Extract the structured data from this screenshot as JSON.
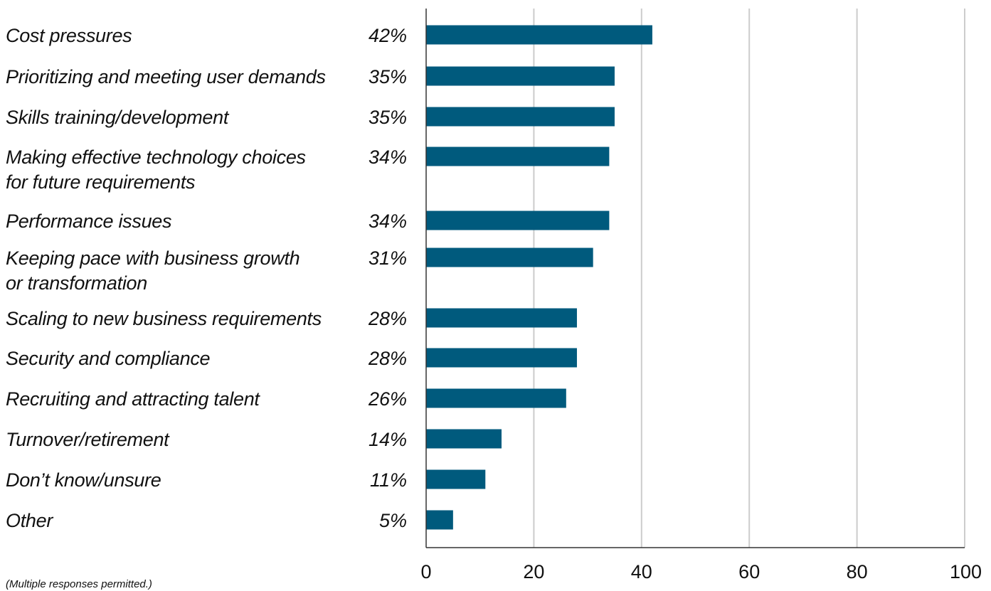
{
  "chart_data": {
    "type": "bar",
    "orientation": "horizontal",
    "categories": [
      [
        "Cost pressures"
      ],
      [
        "Prioritizing and meeting user demands"
      ],
      [
        "Skills training/development"
      ],
      [
        "Making effective technology choices",
        "for future requirements"
      ],
      [
        "Performance issues"
      ],
      [
        "Keeping pace with business growth",
        "or transformation"
      ],
      [
        "Scaling to new business requirements"
      ],
      [
        "Security and compliance"
      ],
      [
        "Recruiting and attracting talent"
      ],
      [
        "Turnover/retirement"
      ],
      [
        "Don’t know/unsure"
      ],
      [
        "Other"
      ]
    ],
    "values": [
      42,
      35,
      35,
      34,
      34,
      31,
      28,
      28,
      26,
      14,
      11,
      5
    ],
    "value_labels": [
      "42%",
      "35%",
      "35%",
      "34%",
      "34%",
      "31%",
      "28%",
      "28%",
      "26%",
      "14%",
      "11%",
      "5%"
    ],
    "xlim": [
      0,
      100
    ],
    "xticks": [
      0,
      20,
      40,
      60,
      80,
      100
    ],
    "xtick_labels": [
      "0",
      "20",
      "40",
      "60",
      "80",
      "100"
    ],
    "grid": true,
    "bar_color": "#005a7d",
    "grid_color": "#cccccc",
    "footnote": "(Multiple responses permitted.)"
  }
}
